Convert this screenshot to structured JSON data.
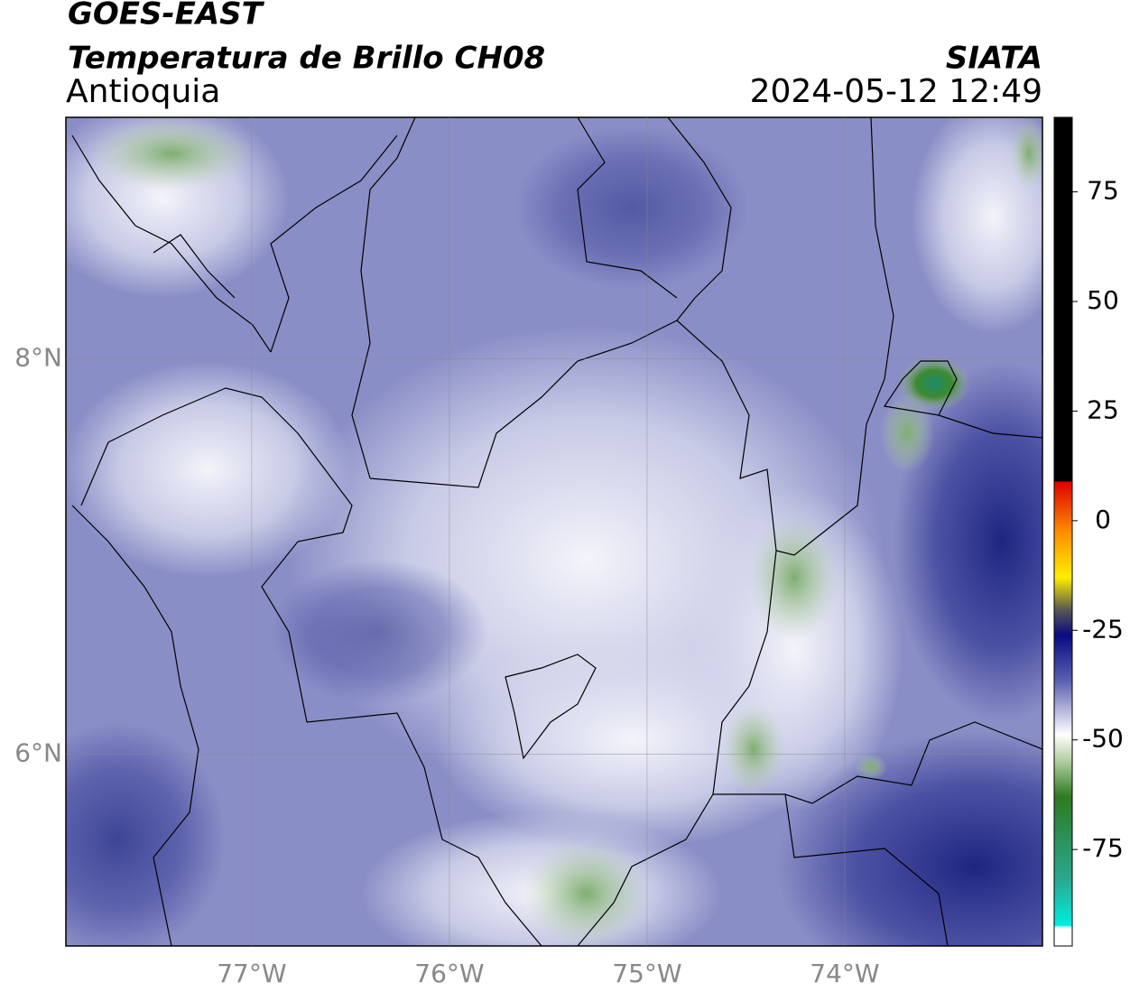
{
  "map": {
    "title_top": "GOES-EAST",
    "title": "Temperatura de Brillo CH08",
    "region": "Antioquia",
    "source": "SIATA",
    "datetime": "2024-05-12 12:49",
    "xlim": [
      -77.94,
      -73.0
    ],
    "ylim": [
      5.03,
      9.22
    ],
    "xticks": [
      {
        "value": -77,
        "label": "77°W"
      },
      {
        "value": -76,
        "label": "76°W"
      },
      {
        "value": -75,
        "label": "75°W"
      },
      {
        "value": -74,
        "label": "74°W"
      }
    ],
    "yticks": [
      {
        "value": 6,
        "label": "6°N"
      },
      {
        "value": 8,
        "label": "8°N"
      }
    ],
    "grid": true,
    "colorbar": {
      "lim": [
        -97,
        92
      ],
      "ticks": [
        75,
        50,
        25,
        0,
        -25,
        -50,
        -75
      ]
    }
  }
}
